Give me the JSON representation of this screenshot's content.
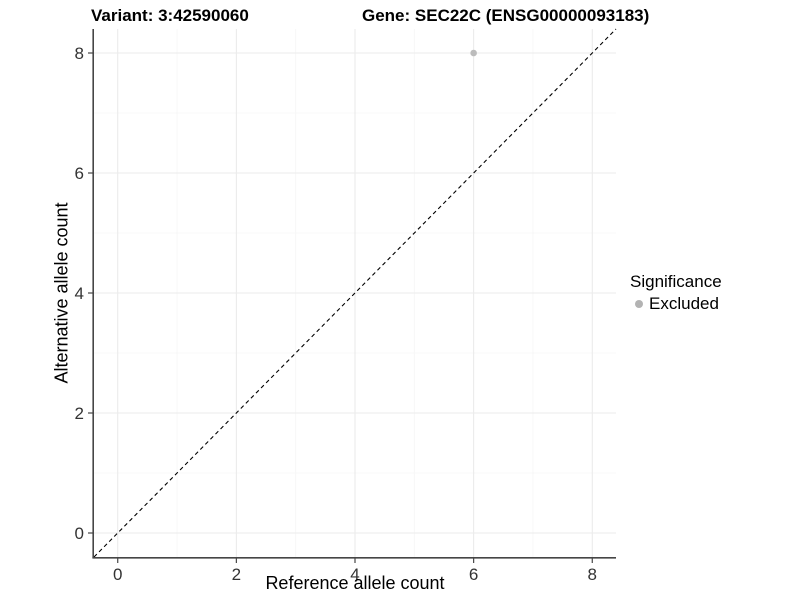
{
  "chart_data": {
    "type": "scatter",
    "title_left": "Variant: 3:42590060",
    "title_right": "Gene: SEC22C (ENSG00000093183)",
    "xlabel": "Reference allele count",
    "ylabel": "Alternative allele count",
    "xlim": [
      -0.4,
      8.4
    ],
    "ylim": [
      -0.4,
      8.4
    ],
    "xticks": [
      0,
      2,
      4,
      6,
      8
    ],
    "yticks": [
      0,
      2,
      4,
      6,
      8
    ],
    "x_minor_ticks": [
      1,
      3,
      5,
      7
    ],
    "y_minor_ticks": [
      1,
      3,
      5,
      7
    ],
    "grid": true,
    "points": [
      {
        "x": 6,
        "y": 8,
        "significance": "Excluded"
      }
    ],
    "identity_line": {
      "from": [
        -0.4,
        -0.4
      ],
      "to": [
        8.4,
        8.4
      ],
      "style": "dashed",
      "color": "#000000"
    },
    "legend": {
      "title": "Significance",
      "position": "right",
      "items": [
        {
          "label": "Excluded",
          "color": "#b3b3b3"
        }
      ]
    },
    "colors": {
      "background": "#ffffff",
      "point": "#bcbcbc",
      "grid_major": "#ebebeb",
      "grid_minor": "#f6f6f6",
      "axis_line": "#464646",
      "tick_text": "#333333",
      "title_text": "#000000"
    }
  }
}
